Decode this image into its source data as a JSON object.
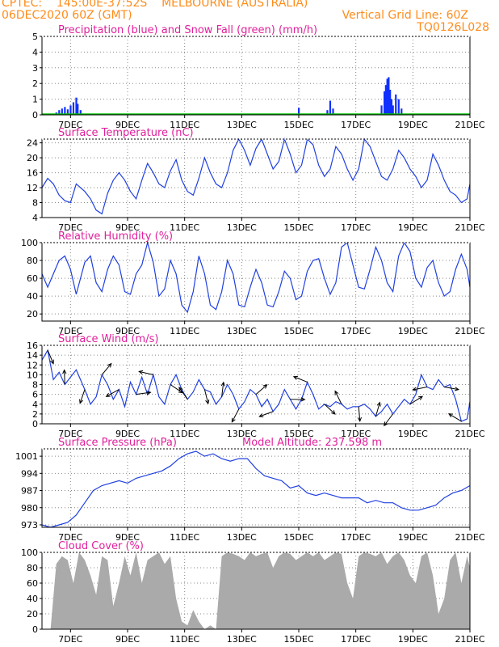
{
  "header": {
    "line1_left": "CPTEC:    145:00E-37:52S    MELBOURNE (AUSTRALIA)",
    "line2_left": "06DEC2020 60Z (GMT)",
    "line2_right": "Vertical Grid Line: 60Z",
    "line3_right": "TQ0126L028"
  },
  "colors": {
    "header_text": "#ff8c1a",
    "title_text": "#e0209c",
    "series_line": "#2040e0",
    "precip_bar": "#1030ff",
    "snow": "#00c000",
    "cloud_fill": "#aaaaaa",
    "wind_arrow": "#000000",
    "grid": "#888888"
  },
  "x_labels": [
    "7DEC",
    "9DEC",
    "11DEC",
    "13DEC",
    "15DEC",
    "17DEC",
    "19DEC",
    "21DEC"
  ],
  "chart_data": [
    {
      "id": "precip",
      "type": "bar",
      "title": "Precipitation (blue) and Snow Fall (green) (mm/h)",
      "yticks": [
        0,
        1,
        2,
        3,
        4,
        5
      ],
      "ylim": [
        0,
        5
      ],
      "xlim": [
        6,
        21
      ],
      "x_unit": "day of December 2020",
      "grid": "dotted",
      "snow_values": "all 0",
      "bars": [
        {
          "x": 6.5,
          "y": 0.15
        },
        {
          "x": 6.6,
          "y": 0.3
        },
        {
          "x": 6.7,
          "y": 0.4
        },
        {
          "x": 6.8,
          "y": 0.5
        },
        {
          "x": 6.9,
          "y": 0.35
        },
        {
          "x": 7.0,
          "y": 0.6
        },
        {
          "x": 7.1,
          "y": 0.8
        },
        {
          "x": 7.2,
          "y": 1.1
        },
        {
          "x": 7.25,
          "y": 0.7
        },
        {
          "x": 7.35,
          "y": 0.3
        },
        {
          "x": 15.0,
          "y": 0.45
        },
        {
          "x": 16.0,
          "y": 0.3
        },
        {
          "x": 16.1,
          "y": 0.9
        },
        {
          "x": 16.2,
          "y": 0.4
        },
        {
          "x": 17.9,
          "y": 0.6
        },
        {
          "x": 18.0,
          "y": 1.5
        },
        {
          "x": 18.05,
          "y": 1.9
        },
        {
          "x": 18.1,
          "y": 2.3
        },
        {
          "x": 18.15,
          "y": 2.4
        },
        {
          "x": 18.2,
          "y": 1.6
        },
        {
          "x": 18.25,
          "y": 1.0
        },
        {
          "x": 18.3,
          "y": 0.6
        },
        {
          "x": 18.4,
          "y": 1.3
        },
        {
          "x": 18.5,
          "y": 1.0
        },
        {
          "x": 18.6,
          "y": 0.4
        }
      ]
    },
    {
      "id": "temp",
      "type": "line",
      "title": "Surface Temperature (nC)",
      "yticks": [
        4,
        8,
        12,
        16,
        20,
        24
      ],
      "ylim": [
        4,
        25
      ],
      "xlim": [
        6,
        21
      ],
      "grid": "dotted",
      "x": [
        6.0,
        6.2,
        6.4,
        6.6,
        6.8,
        7.0,
        7.2,
        7.5,
        7.7,
        7.9,
        8.1,
        8.3,
        8.5,
        8.7,
        8.9,
        9.1,
        9.3,
        9.5,
        9.7,
        9.9,
        10.1,
        10.3,
        10.5,
        10.7,
        10.9,
        11.1,
        11.3,
        11.5,
        11.7,
        11.9,
        12.1,
        12.3,
        12.5,
        12.7,
        12.9,
        13.1,
        13.3,
        13.5,
        13.7,
        13.9,
        14.1,
        14.3,
        14.5,
        14.7,
        14.9,
        15.1,
        15.3,
        15.5,
        15.7,
        15.9,
        16.1,
        16.3,
        16.5,
        16.7,
        16.9,
        17.1,
        17.3,
        17.5,
        17.7,
        17.9,
        18.1,
        18.3,
        18.5,
        18.7,
        18.9,
        19.1,
        19.3,
        19.5,
        19.7,
        19.9,
        20.1,
        20.3,
        20.5,
        20.7,
        20.9,
        21.0
      ],
      "y": [
        12,
        14.5,
        13,
        10,
        8.5,
        8,
        13,
        11,
        9,
        6,
        5,
        10.5,
        14,
        16,
        14,
        11,
        9,
        14,
        18.5,
        16,
        13,
        12,
        16.5,
        19.5,
        14,
        11,
        10,
        14.5,
        20,
        16,
        13,
        12,
        16,
        22,
        25,
        22,
        18,
        22.5,
        25,
        21,
        17,
        19,
        25,
        21,
        16,
        18,
        25,
        23.5,
        18,
        15,
        17,
        23,
        21,
        17,
        14,
        17,
        25,
        23,
        19,
        15,
        14,
        17,
        22,
        20,
        17,
        15,
        12,
        14,
        21,
        18,
        14,
        11,
        10,
        8,
        9,
        13
      ]
    },
    {
      "id": "rh",
      "type": "line",
      "title": "Relative Humidity (%)",
      "yticks": [
        20,
        40,
        60,
        80,
        100
      ],
      "ylim": [
        12,
        100
      ],
      "xlim": [
        6,
        21
      ],
      "grid": "dotted",
      "x": [
        6.0,
        6.2,
        6.4,
        6.6,
        6.8,
        7.0,
        7.2,
        7.5,
        7.7,
        7.9,
        8.1,
        8.3,
        8.5,
        8.7,
        8.9,
        9.1,
        9.3,
        9.5,
        9.7,
        9.9,
        10.1,
        10.3,
        10.5,
        10.7,
        10.9,
        11.1,
        11.3,
        11.5,
        11.7,
        11.9,
        12.1,
        12.3,
        12.5,
        12.7,
        12.9,
        13.1,
        13.3,
        13.5,
        13.7,
        13.9,
        14.1,
        14.3,
        14.5,
        14.7,
        14.9,
        15.1,
        15.3,
        15.5,
        15.7,
        15.9,
        16.1,
        16.3,
        16.5,
        16.7,
        16.9,
        17.1,
        17.3,
        17.5,
        17.7,
        17.9,
        18.1,
        18.3,
        18.5,
        18.7,
        18.9,
        19.1,
        19.3,
        19.5,
        19.7,
        19.9,
        20.1,
        20.3,
        20.5,
        20.7,
        20.9,
        21.0
      ],
      "y": [
        65,
        50,
        65,
        80,
        85,
        70,
        42,
        78,
        85,
        55,
        45,
        70,
        85,
        75,
        45,
        42,
        65,
        75,
        100,
        78,
        40,
        48,
        80,
        65,
        30,
        22,
        45,
        85,
        65,
        30,
        25,
        45,
        80,
        65,
        30,
        28,
        50,
        70,
        55,
        30,
        28,
        45,
        68,
        60,
        36,
        40,
        68,
        80,
        82,
        60,
        42,
        55,
        95,
        100,
        75,
        50,
        48,
        70,
        95,
        80,
        55,
        45,
        85,
        100,
        90,
        60,
        50,
        72,
        80,
        55,
        40,
        45,
        70,
        87,
        70,
        50
      ]
    },
    {
      "id": "wind",
      "type": "line",
      "title": "Surface Wind (m/s)",
      "yticks": [
        0,
        2,
        4,
        6,
        8,
        10,
        12,
        14,
        16
      ],
      "ylim": [
        0,
        16
      ],
      "xlim": [
        6,
        21
      ],
      "grid": "dotted",
      "x": [
        6.0,
        6.2,
        6.4,
        6.6,
        6.8,
        7.0,
        7.2,
        7.5,
        7.7,
        7.9,
        8.1,
        8.3,
        8.5,
        8.7,
        8.9,
        9.1,
        9.3,
        9.5,
        9.7,
        9.9,
        10.1,
        10.3,
        10.5,
        10.7,
        10.9,
        11.1,
        11.3,
        11.5,
        11.7,
        11.9,
        12.1,
        12.3,
        12.5,
        12.7,
        12.9,
        13.1,
        13.3,
        13.5,
        13.7,
        13.9,
        14.1,
        14.3,
        14.5,
        14.7,
        14.9,
        15.1,
        15.3,
        15.5,
        15.7,
        15.9,
        16.1,
        16.3,
        16.5,
        16.7,
        16.9,
        17.1,
        17.3,
        17.5,
        17.7,
        17.9,
        18.1,
        18.3,
        18.5,
        18.7,
        18.9,
        19.1,
        19.3,
        19.5,
        19.7,
        19.9,
        20.1,
        20.3,
        20.5,
        20.7,
        20.9,
        21.0
      ],
      "y": [
        13,
        15,
        9,
        10.5,
        8,
        9.5,
        11,
        7,
        4,
        5.5,
        10,
        8,
        5,
        7,
        3.5,
        8.5,
        6,
        9.5,
        6,
        10,
        5.5,
        4,
        8,
        10,
        7,
        5,
        6.5,
        9,
        7,
        6.5,
        4,
        5.5,
        8,
        6,
        3,
        4.5,
        7,
        6,
        3.5,
        5,
        2.5,
        4,
        7,
        5,
        3,
        5,
        8.5,
        6,
        3,
        4,
        3.5,
        4.5,
        4,
        3,
        3.5,
        3.5,
        4,
        3,
        1.5,
        2.5,
        4,
        2,
        3.5,
        5,
        4,
        6,
        10,
        7.5,
        7,
        9,
        7.5,
        8,
        5,
        0.5,
        1,
        4.5
      ],
      "arrow_directions": "black wind vectors along the curve"
    },
    {
      "id": "pressure",
      "type": "line",
      "title": "Surface Pressure (hPa)",
      "annotation": "Model Altitude: 237.598 m",
      "yticks": [
        973,
        980,
        987,
        994,
        1001
      ],
      "ylim": [
        972,
        1004
      ],
      "xlim": [
        6,
        21
      ],
      "grid": "dotted",
      "x": [
        6.0,
        6.3,
        6.6,
        6.9,
        7.2,
        7.5,
        7.8,
        8.1,
        8.4,
        8.7,
        9.0,
        9.3,
        9.6,
        9.9,
        10.2,
        10.5,
        10.8,
        11.1,
        11.4,
        11.7,
        12.0,
        12.3,
        12.6,
        12.9,
        13.2,
        13.5,
        13.8,
        14.1,
        14.4,
        14.7,
        15.0,
        15.3,
        15.6,
        15.9,
        16.2,
        16.5,
        16.8,
        17.1,
        17.4,
        17.7,
        18.0,
        18.3,
        18.6,
        18.9,
        19.2,
        19.5,
        19.8,
        20.1,
        20.4,
        20.7,
        21.0
      ],
      "y": [
        973,
        972,
        973,
        974,
        977,
        982,
        987,
        989,
        990,
        991,
        990,
        992,
        993,
        994,
        995,
        997,
        1000,
        1002,
        1003,
        1001,
        1002,
        1000,
        999,
        1000,
        1000,
        996,
        993,
        992,
        991,
        988,
        989,
        986,
        985,
        986,
        985,
        984,
        984,
        984,
        982,
        983,
        982,
        982,
        980,
        979,
        979,
        980,
        981,
        984,
        986,
        987,
        989
      ]
    },
    {
      "id": "cloud",
      "type": "area",
      "title": "Cloud Cover (%)",
      "yticks": [
        0,
        20,
        40,
        60,
        80,
        100
      ],
      "ylim": [
        0,
        100
      ],
      "xlim": [
        6,
        21
      ],
      "grid": "dotted",
      "x": [
        6.0,
        6.3,
        6.5,
        6.7,
        6.9,
        7.1,
        7.3,
        7.5,
        7.7,
        7.9,
        8.1,
        8.3,
        8.5,
        8.7,
        8.9,
        9.1,
        9.3,
        9.5,
        9.7,
        9.9,
        10.1,
        10.3,
        10.5,
        10.7,
        10.9,
        11.1,
        11.3,
        11.5,
        11.7,
        11.9,
        12.1,
        12.3,
        12.5,
        12.7,
        12.9,
        13.1,
        13.3,
        13.5,
        13.7,
        13.9,
        14.1,
        14.3,
        14.5,
        14.7,
        14.9,
        15.1,
        15.3,
        15.5,
        15.7,
        15.9,
        16.1,
        16.3,
        16.5,
        16.7,
        16.9,
        17.1,
        17.3,
        17.5,
        17.7,
        17.9,
        18.1,
        18.3,
        18.5,
        18.7,
        18.9,
        19.1,
        19.3,
        19.5,
        19.7,
        19.9,
        20.1,
        20.3,
        20.5,
        20.7,
        20.9,
        21.0
      ],
      "y": [
        0,
        0,
        85,
        95,
        90,
        60,
        100,
        90,
        70,
        45,
        95,
        90,
        30,
        60,
        95,
        70,
        100,
        60,
        90,
        95,
        100,
        85,
        95,
        40,
        10,
        5,
        25,
        10,
        0,
        5,
        0,
        95,
        100,
        98,
        95,
        90,
        100,
        95,
        98,
        100,
        80,
        95,
        100,
        98,
        90,
        95,
        100,
        95,
        100,
        90,
        95,
        100,
        98,
        60,
        40,
        95,
        100,
        98,
        95,
        100,
        85,
        95,
        100,
        90,
        70,
        60,
        95,
        100,
        70,
        20,
        40,
        90,
        100,
        60,
        95,
        80
      ]
    }
  ]
}
